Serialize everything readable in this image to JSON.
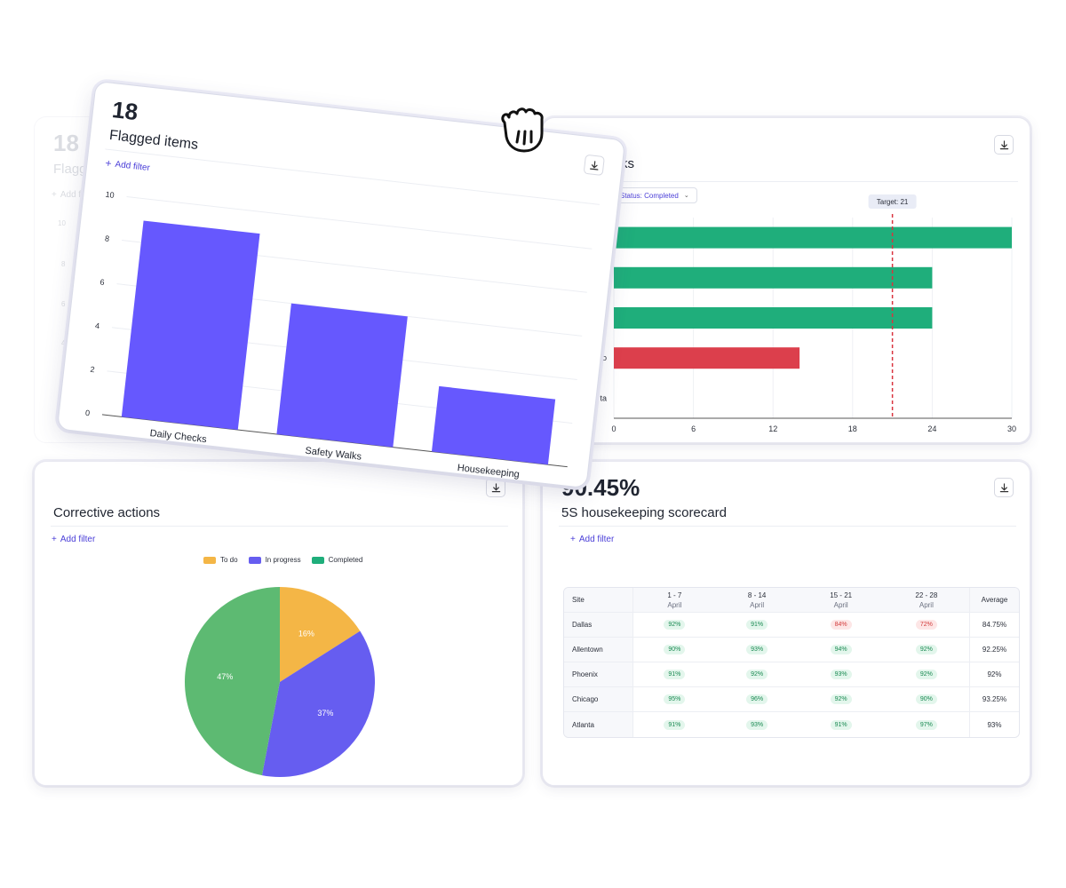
{
  "colors": {
    "accent": "#6658fe",
    "green": "#1fae7b",
    "red": "#dc3f4c",
    "yellow": "#f4b646",
    "pie_purple": "#665df0",
    "pie_green": "#5dba72",
    "target_line": "#d9343f"
  },
  "flagged_card": {
    "count": "18",
    "title": "Flagged items",
    "add_filter": "Add filter",
    "chart_data": {
      "type": "bar",
      "categories": [
        "Daily Checks",
        "Safety Walks",
        "Housekeeping"
      ],
      "values": [
        9,
        6,
        3
      ],
      "yticks": [
        "0",
        "2",
        "4",
        "6",
        "8",
        "10"
      ],
      "ylim": [
        0,
        10
      ]
    }
  },
  "ghost_card": {
    "count": "18",
    "title": "Flagg",
    "add_filter": "Add fi",
    "yticks": [
      "10",
      "8",
      "6",
      "4"
    ]
  },
  "hbar_card": {
    "title_fragment": "ks",
    "status_filter": "Status: Completed",
    "target_label": "Target: 21",
    "row_label_fragments": [
      "o",
      "ta"
    ],
    "chart_data": {
      "type": "bar",
      "orientation": "horizontal",
      "values": [
        30,
        24,
        24,
        14,
        0
      ],
      "bar_colors": [
        "green",
        "green",
        "green",
        "red",
        "none"
      ],
      "xticks": [
        "0",
        "6",
        "12",
        "18",
        "24",
        "30"
      ],
      "xlim": [
        0,
        30
      ],
      "target": 21
    }
  },
  "corrective_card": {
    "title": "Corrective actions",
    "add_filter": "Add filter",
    "chart_data": {
      "type": "pie",
      "labels": [
        "To do",
        "In progress",
        "Completed"
      ],
      "values": [
        16,
        37,
        47
      ],
      "value_labels": [
        "16%",
        "37%",
        "47%"
      ]
    }
  },
  "scorecard_card": {
    "big_value": "90.45%",
    "title": "5S housekeeping scorecard",
    "add_filter": "Add filter",
    "columns": [
      {
        "top": "Site",
        "sub": ""
      },
      {
        "top": "1 - 7",
        "sub": "April"
      },
      {
        "top": "8 - 14",
        "sub": "April"
      },
      {
        "top": "15 - 21",
        "sub": "April"
      },
      {
        "top": "22 - 28",
        "sub": "April"
      },
      {
        "top": "Average",
        "sub": ""
      }
    ],
    "rows": [
      {
        "site": "Dallas",
        "values": [
          "92%",
          "91%",
          "84%",
          "72%"
        ],
        "status": [
          "good",
          "good",
          "bad",
          "bad"
        ],
        "average": "84.75%"
      },
      {
        "site": "Allentown",
        "values": [
          "90%",
          "93%",
          "94%",
          "92%"
        ],
        "status": [
          "good",
          "good",
          "good",
          "good"
        ],
        "average": "92.25%"
      },
      {
        "site": "Phoenix",
        "values": [
          "91%",
          "92%",
          "93%",
          "92%"
        ],
        "status": [
          "good",
          "good",
          "good",
          "good"
        ],
        "average": "92%"
      },
      {
        "site": "Chicago",
        "values": [
          "95%",
          "96%",
          "92%",
          "90%"
        ],
        "status": [
          "good",
          "good",
          "good",
          "good"
        ],
        "average": "93.25%"
      },
      {
        "site": "Atlanta",
        "values": [
          "91%",
          "93%",
          "91%",
          "97%"
        ],
        "status": [
          "good",
          "good",
          "good",
          "good"
        ],
        "average": "93%"
      }
    ]
  },
  "icons": {
    "download": "download-icon",
    "plus": "plus-icon",
    "chevron": "chevron-down-icon",
    "cursor": "grab-hand-icon"
  }
}
